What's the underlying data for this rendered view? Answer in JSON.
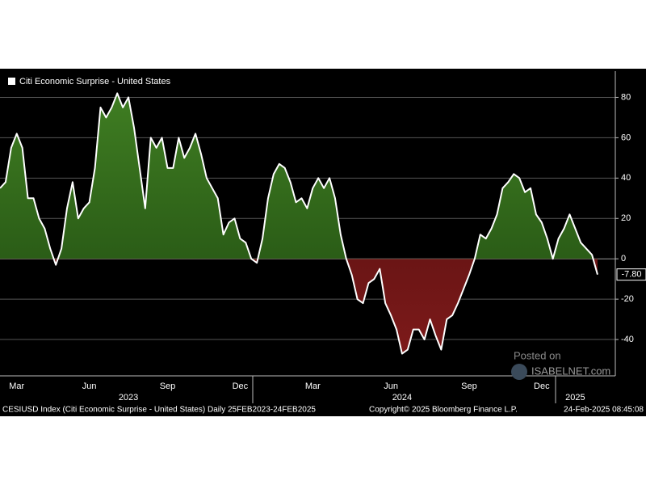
{
  "chart_data": {
    "type": "area",
    "legend": "Citi Economic Surprise - United States",
    "legend_position": "upper left",
    "series": [
      {
        "name": "Citi Economic Surprise - United States",
        "color": "#ffffff",
        "positive_color": "#3f7d22",
        "negative_color": "#7d1a1a",
        "values": [
          35,
          38,
          55,
          62,
          55,
          30,
          30,
          20,
          15,
          5,
          -3,
          5,
          25,
          38,
          20,
          25,
          28,
          45,
          75,
          70,
          75,
          82,
          75,
          80,
          65,
          45,
          25,
          60,
          55,
          60,
          45,
          45,
          60,
          50,
          55,
          62,
          52,
          40,
          35,
          30,
          12,
          18,
          20,
          10,
          8,
          0,
          -2,
          10,
          30,
          42,
          47,
          45,
          38,
          28,
          30,
          25,
          35,
          40,
          35,
          40,
          30,
          12,
          0,
          -8,
          -20,
          -22,
          -12,
          -10,
          -5,
          -22,
          -28,
          -35,
          -47,
          -45,
          -35,
          -35,
          -40,
          -30,
          -38,
          -45,
          -30,
          -28,
          -22,
          -15,
          -8,
          0,
          12,
          10,
          15,
          22,
          35,
          38,
          42,
          40,
          33,
          35,
          22,
          18,
          10,
          0,
          10,
          15,
          22,
          15,
          8,
          5,
          2,
          -7.8
        ],
        "value_labels": [
          null,
          null,
          null,
          null,
          null,
          null,
          null,
          null,
          null,
          null,
          null,
          null,
          null,
          null,
          null,
          null,
          null,
          null,
          null,
          null,
          null,
          null,
          null,
          null,
          null,
          null,
          null,
          null,
          null,
          null,
          null,
          null,
          null,
          null,
          null,
          null,
          null,
          null,
          null,
          null,
          null,
          null,
          null,
          null,
          null,
          null,
          null,
          null,
          null,
          null,
          null,
          null,
          null,
          null,
          null,
          null,
          null,
          null,
          null,
          null,
          null,
          null,
          null,
          null,
          null,
          null,
          null,
          null,
          null,
          null,
          null,
          null,
          null,
          null,
          null,
          null,
          null,
          null,
          null,
          null,
          null,
          null,
          null,
          null,
          null,
          null,
          null,
          null,
          null,
          null,
          null,
          null,
          null,
          null,
          null,
          null,
          null,
          null,
          null,
          null,
          null,
          null,
          null,
          null,
          null,
          null,
          null,
          "-7.80"
        ]
      }
    ],
    "categories": [
      null,
      null,
      null,
      "Mar",
      null,
      null,
      null,
      null,
      null,
      null,
      null,
      null,
      null,
      null,
      null,
      null,
      "Jun",
      null,
      null,
      null,
      null,
      null,
      null,
      null,
      null,
      null,
      null,
      null,
      null,
      null,
      "Sep",
      null,
      null,
      null,
      null,
      null,
      null,
      null,
      null,
      null,
      null,
      null,
      null,
      "Dec",
      null,
      null,
      null,
      null,
      null,
      null,
      null,
      null,
      null,
      null,
      null,
      null,
      "Mar",
      null,
      null,
      null,
      null,
      null,
      null,
      null,
      null,
      null,
      null,
      null,
      null,
      null,
      "Jun",
      null,
      null,
      null,
      null,
      null,
      null,
      null,
      null,
      null,
      null,
      null,
      null,
      null,
      "Sep",
      null,
      null,
      null,
      null,
      null,
      null,
      null,
      null,
      null,
      null,
      null,
      null,
      "Dec",
      null,
      null,
      null,
      null,
      null,
      null,
      null,
      null,
      null,
      null
    ],
    "year_categories": [
      null,
      null,
      null,
      null,
      null,
      null,
      null,
      null,
      null,
      null,
      null,
      null,
      null,
      null,
      null,
      null,
      null,
      null,
      null,
      null,
      null,
      null,
      null,
      "2023",
      null,
      null,
      null,
      null,
      null,
      null,
      null,
      null,
      null,
      null,
      null,
      null,
      null,
      null,
      null,
      null,
      null,
      null,
      null,
      null,
      null,
      null,
      null,
      null,
      null,
      null,
      null,
      null,
      null,
      null,
      null,
      null,
      null,
      null,
      null,
      null,
      null,
      null,
      null,
      null,
      null,
      null,
      null,
      null,
      null,
      null,
      null,
      null,
      "2024",
      null,
      null,
      null,
      null,
      null,
      null,
      null,
      null,
      null,
      null,
      null,
      null,
      null,
      null,
      null,
      null,
      null,
      null,
      null,
      null,
      null,
      null,
      null,
      null,
      null,
      null,
      null,
      null,
      null,
      null,
      "2025",
      null,
      null
    ],
    "ylim": [
      -58,
      93
    ],
    "yticks": [
      -40,
      -20,
      0,
      20,
      40,
      60,
      80
    ],
    "grid": true,
    "footer": {
      "description": "CESIUSD Index (Citi Economic Surprise - United States)  Daily 25FEB2023-24FEB2025",
      "copyright": "Copyright© 2025 Bloomberg Finance L.P.",
      "timestamp": "24-Feb-2025 08:45:08"
    },
    "watermark": [
      "Posted on",
      "ISABELNET.com"
    ]
  }
}
